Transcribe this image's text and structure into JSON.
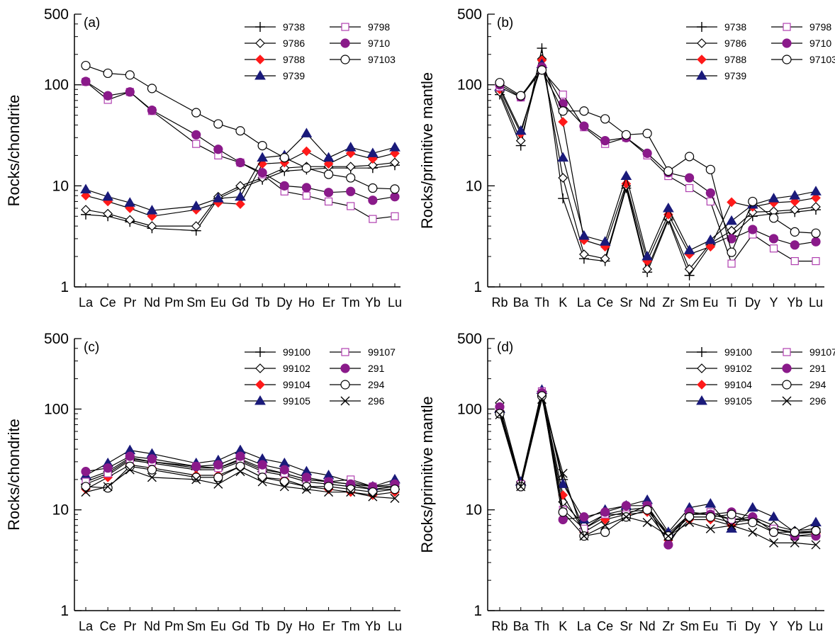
{
  "colors": {
    "axis": "#000000",
    "line": "#000000",
    "red": "#ff1a1a",
    "purple": "#8a1a8a",
    "navy": "#1a1a7a",
    "magenta": "#b040b0",
    "white": "#ffffff"
  },
  "chart_data": [
    {
      "type": "line",
      "panel_label": "(a)",
      "ylabel": "Rocks/chondrite",
      "yscale": "log",
      "ylim": [
        1,
        500
      ],
      "yticks": [
        "1",
        "10",
        "100",
        "500"
      ],
      "categories": [
        "La",
        "Ce",
        "Pr",
        "Nd",
        "Pm",
        "Sm",
        "Eu",
        "Gd",
        "Tb",
        "Dy",
        "Ho",
        "Er",
        "Tm",
        "Yb",
        "Lu"
      ],
      "series": [
        {
          "name": "9738",
          "marker": "plus",
          "values": [
            5.2,
            5.0,
            4.4,
            3.8,
            null,
            3.6,
            7.5,
            9.5,
            11.5,
            14.0,
            14.5,
            15.0,
            15.0,
            15.0,
            16.0
          ]
        },
        {
          "name": "9786",
          "marker": "diamond-open",
          "values": [
            5.8,
            5.3,
            4.6,
            4.0,
            null,
            4.0,
            7.8,
            10.0,
            12.0,
            15.0,
            15.5,
            15.5,
            15.5,
            16.0,
            17.0
          ]
        },
        {
          "name": "9788",
          "marker": "diamond-red",
          "values": [
            8.0,
            7.0,
            6.0,
            5.0,
            null,
            5.8,
            6.8,
            6.6,
            16.5,
            17.0,
            22.0,
            16.5,
            21.0,
            18.5,
            21.0
          ]
        },
        {
          "name": "9739",
          "marker": "triangle-filled",
          "values": [
            9.2,
            7.8,
            6.8,
            5.7,
            null,
            6.3,
            7.5,
            7.8,
            19.0,
            20.0,
            33.0,
            19.0,
            24.0,
            21.0,
            24.0
          ]
        },
        {
          "name": "9798",
          "marker": "square-open",
          "values": [
            107,
            71,
            85,
            55,
            null,
            26,
            20,
            17,
            13,
            8.8,
            8.0,
            7.0,
            6.3,
            4.7,
            5.0
          ]
        },
        {
          "name": "9710",
          "marker": "circle-purple",
          "values": [
            108,
            78,
            85,
            56,
            null,
            32,
            23,
            17,
            13.5,
            10.0,
            9.6,
            8.6,
            8.8,
            7.2,
            7.8
          ]
        },
        {
          "name": "97103",
          "marker": "circle-open",
          "values": [
            155,
            130,
            125,
            92,
            null,
            53,
            41,
            35,
            25,
            19,
            15,
            13,
            12,
            9.5,
            9.3
          ]
        }
      ]
    },
    {
      "type": "line",
      "panel_label": "(b)",
      "ylabel": "Rocks/primitive mantle",
      "yscale": "log",
      "ylim": [
        1,
        500
      ],
      "yticks": [
        "1",
        "10",
        "100",
        "500"
      ],
      "categories": [
        "Rb",
        "Ba",
        "Th",
        "K",
        "La",
        "Ce",
        "Sr",
        "Nd",
        "Zr",
        "Sm",
        "Eu",
        "Ti",
        "Dy",
        "Y",
        "Yb",
        "Lu"
      ],
      "series": [
        {
          "name": "9738",
          "marker": "plus",
          "values": [
            80,
            25,
            230,
            7.5,
            1.9,
            1.8,
            9.5,
            1.4,
            4.6,
            1.3,
            2.6,
            3.2,
            5.0,
            5.3,
            5.5,
            5.8
          ]
        },
        {
          "name": "9786",
          "marker": "diamond-open",
          "values": [
            85,
            28,
            180,
            12,
            2.1,
            1.9,
            10.0,
            1.5,
            4.8,
            1.5,
            2.7,
            3.6,
            5.5,
            5.6,
            5.8,
            6.2
          ]
        },
        {
          "name": "9788",
          "marker": "diamond-red",
          "values": [
            90,
            33,
            175,
            43,
            2.9,
            2.5,
            10.5,
            1.8,
            5.2,
            2.1,
            2.5,
            6.9,
            6.2,
            6.8,
            7.0,
            7.6
          ]
        },
        {
          "name": "9739",
          "marker": "triangle-filled",
          "values": [
            95,
            35,
            160,
            19,
            3.2,
            2.8,
            12.5,
            2.0,
            6.0,
            2.3,
            2.9,
            4.5,
            6.5,
            7.5,
            8.0,
            8.8
          ]
        },
        {
          "name": "9798",
          "marker": "square-open",
          "values": [
            95,
            75,
            140,
            80,
            38,
            26,
            30,
            20,
            12.5,
            9.5,
            7.0,
            1.7,
            3.3,
            2.4,
            1.8,
            1.8
          ]
        },
        {
          "name": "9710",
          "marker": "circle-purple",
          "values": [
            100,
            76,
            150,
            65,
            39,
            28,
            30,
            21,
            13.5,
            12.0,
            8.5,
            3.0,
            3.7,
            3.0,
            2.6,
            2.8
          ]
        },
        {
          "name": "97103",
          "marker": "circle-open",
          "values": [
            105,
            78,
            140,
            55,
            55,
            46,
            32,
            33,
            14,
            19.5,
            14.5,
            2.2,
            7.0,
            4.8,
            3.5,
            3.4
          ]
        }
      ]
    },
    {
      "type": "line",
      "panel_label": "(c)",
      "ylabel": "Rocks/chondrite",
      "yscale": "log",
      "ylim": [
        1,
        500
      ],
      "yticks": [
        "1",
        "10",
        "100",
        "500"
      ],
      "categories": [
        "La",
        "Ce",
        "Pr",
        "Nd",
        "Pm",
        "Sm",
        "Eu",
        "Gd",
        "Tb",
        "Dy",
        "Ho",
        "Er",
        "Tm",
        "Yb",
        "Lu"
      ],
      "series": [
        {
          "name": "99100",
          "marker": "plus",
          "values": [
            18,
            22,
            31,
            29,
            null,
            25,
            25,
            30,
            24,
            22,
            19,
            18,
            17,
            16,
            16
          ]
        },
        {
          "name": "99102",
          "marker": "diamond-open",
          "values": [
            20,
            24,
            33,
            30,
            null,
            26,
            26,
            32,
            26,
            23,
            20,
            19,
            18,
            16,
            17
          ]
        },
        {
          "name": "99104",
          "marker": "diamond-red",
          "values": [
            16,
            21,
            28,
            26,
            null,
            22,
            22,
            27,
            21,
            20,
            17,
            16,
            15,
            14,
            15
          ]
        },
        {
          "name": "99105",
          "marker": "triangle-filled",
          "values": [
            22,
            29,
            39,
            36,
            null,
            29,
            31,
            39,
            32,
            29,
            24,
            22,
            19,
            17,
            20
          ]
        },
        {
          "name": "99107",
          "marker": "square-open",
          "values": [
            19,
            23,
            32,
            30,
            null,
            27,
            26,
            31,
            25,
            23,
            20,
            19,
            20,
            17,
            17
          ]
        },
        {
          "name": "291",
          "marker": "circle-purple",
          "values": [
            24,
            26,
            34,
            32,
            null,
            27,
            28,
            34,
            28,
            25,
            21,
            19,
            18,
            17,
            18
          ]
        },
        {
          "name": "294",
          "marker": "circle-open",
          "values": [
            17,
            16.5,
            27,
            25,
            null,
            21,
            21,
            27,
            21,
            19,
            17,
            17,
            16,
            15,
            16
          ]
        },
        {
          "name": "296",
          "marker": "cross",
          "values": [
            15,
            17,
            25,
            21,
            null,
            20,
            18,
            24,
            19,
            17,
            16,
            15,
            15,
            13.5,
            13
          ]
        }
      ]
    },
    {
      "type": "line",
      "panel_label": "(d)",
      "ylabel": "Rocks/primitive mantle",
      "yscale": "log",
      "ylim": [
        1,
        500
      ],
      "yticks": [
        "1",
        "10",
        "100",
        "500"
      ],
      "categories": [
        "Rb",
        "Ba",
        "Th",
        "K",
        "La",
        "Ce",
        "Sr",
        "Nd",
        "Zr",
        "Sm",
        "Eu",
        "Ti",
        "Dy",
        "Y",
        "Yb",
        "Lu"
      ],
      "series": [
        {
          "name": "99100",
          "marker": "plus",
          "values": [
            95,
            18,
            150,
            20,
            6.5,
            8.5,
            9.5,
            10.0,
            5.5,
            8.5,
            8.5,
            7.5,
            8.0,
            6.5,
            6.0,
            6.0
          ]
        },
        {
          "name": "99102",
          "marker": "diamond-open",
          "values": [
            115,
            19,
            140,
            12,
            7.0,
            9.0,
            10.0,
            10.5,
            5.8,
            9.0,
            9.0,
            8.0,
            8.5,
            7.0,
            6.2,
            6.5
          ]
        },
        {
          "name": "99104",
          "marker": "diamond-red",
          "values": [
            95,
            18,
            145,
            14,
            6.0,
            8.0,
            9.0,
            9.5,
            5.0,
            8.0,
            8.0,
            7.0,
            7.5,
            6.0,
            5.5,
            5.8
          ]
        },
        {
          "name": "99105",
          "marker": "triangle-filled",
          "values": [
            100,
            19,
            155,
            18,
            8.0,
            10.0,
            11.0,
            12.5,
            6.0,
            10.5,
            11.5,
            6.5,
            10.5,
            8.5,
            6.0,
            7.5
          ]
        },
        {
          "name": "99107",
          "marker": "square-open",
          "values": [
            100,
            18,
            150,
            10,
            6.5,
            9.0,
            9.0,
            11.0,
            5.5,
            9.0,
            9.5,
            8.0,
            8.0,
            6.5,
            5.8,
            6.0
          ]
        },
        {
          "name": "291",
          "marker": "circle-purple",
          "values": [
            105,
            17,
            145,
            8.0,
            8.5,
            9.5,
            11.0,
            11.0,
            4.5,
            9.5,
            9.0,
            9.5,
            8.5,
            6.0,
            5.5,
            5.5
          ]
        },
        {
          "name": "294",
          "marker": "circle-open",
          "values": [
            90,
            17,
            135,
            9.5,
            5.5,
            6.0,
            8.5,
            10.0,
            5.5,
            8.5,
            8.5,
            9.0,
            7.5,
            6.0,
            6.0,
            6.2
          ]
        },
        {
          "name": "296",
          "marker": "cross",
          "values": [
            88,
            17,
            125,
            23,
            5.5,
            7.0,
            8.5,
            7.5,
            5.5,
            7.5,
            6.5,
            7.0,
            6.0,
            4.7,
            4.7,
            4.5
          ]
        }
      ]
    }
  ]
}
